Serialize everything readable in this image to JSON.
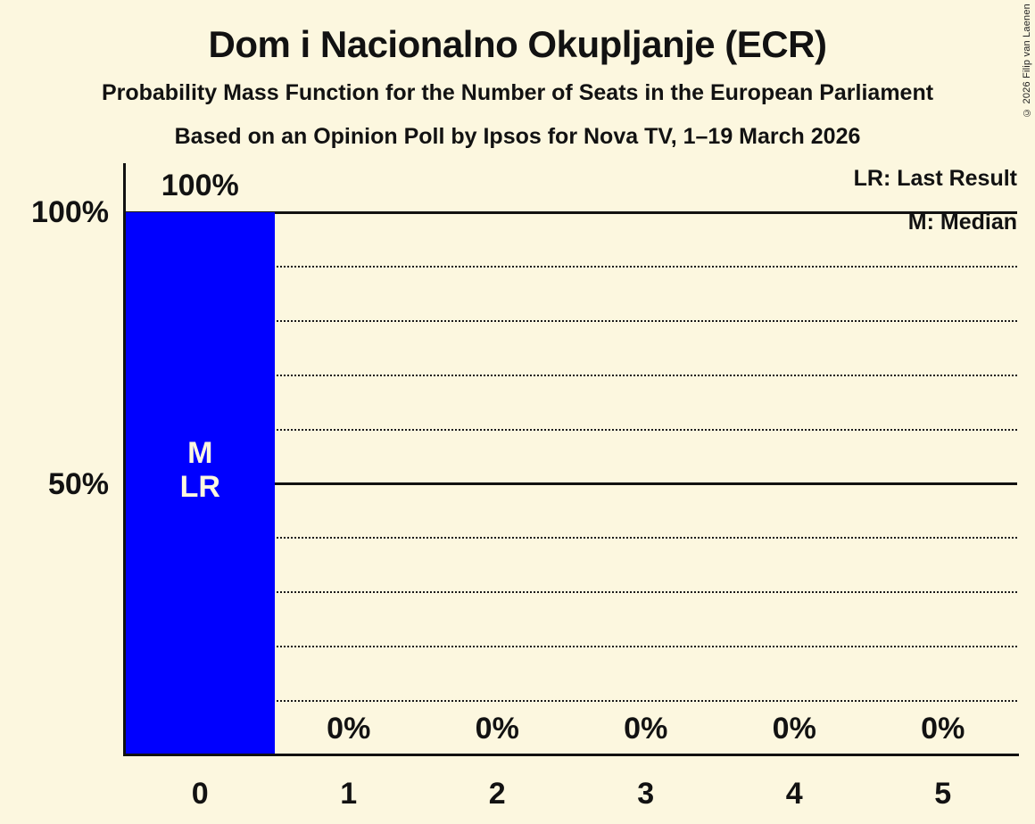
{
  "page": {
    "copyright": "© 2026 Filip van Laenen",
    "background_color": "#fcf7df",
    "text_color": "#121212"
  },
  "chart_data": {
    "type": "bar",
    "title": "Dom i Nacionalno Okupljanje (ECR)",
    "subtitle": "Probability Mass Function for the Number of Seats in the European Parliament",
    "poll_source": "Based on an Opinion Poll by Ipsos for Nova TV, 1–19 March 2026",
    "xlabel": "",
    "ylabel": "",
    "categories": [
      "0",
      "1",
      "2",
      "3",
      "4",
      "5"
    ],
    "values": [
      100,
      0,
      0,
      0,
      0,
      0
    ],
    "value_labels": [
      "100%",
      "0%",
      "0%",
      "0%",
      "0%",
      "0%"
    ],
    "bar_annotations": [
      [
        "M",
        "LR"
      ],
      [],
      [],
      [],
      [],
      []
    ],
    "ylim": [
      0,
      100
    ],
    "yticks": [
      {
        "value": 100,
        "label": "100%"
      },
      {
        "value": 50,
        "label": "50%"
      }
    ],
    "solid_gridlines": [
      100,
      50
    ],
    "dotted_gridlines": [
      90,
      80,
      70,
      60,
      40,
      30,
      20,
      10
    ],
    "grid": "horizontal",
    "bar_color": "#0000ff",
    "bar_label_color": "#fcf7df",
    "legend_position": "top-right",
    "legend": {
      "last_result": "LR: Last Result",
      "median": "M: Median"
    }
  }
}
